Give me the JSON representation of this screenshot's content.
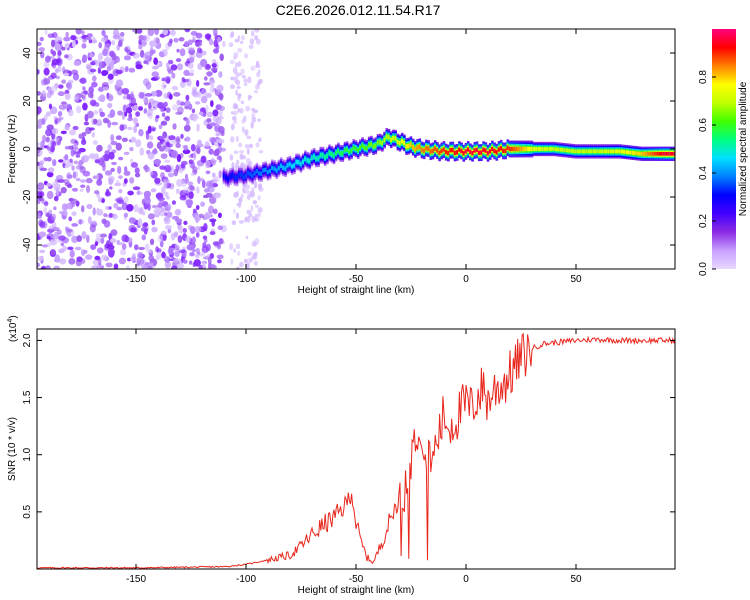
{
  "title": "C2E6.2026.012.11.54.R17",
  "chart_data": [
    {
      "type": "heatmap",
      "xlabel": "Height of straight line (km)",
      "ylabel": "Frequency (Hz)",
      "xlim": [
        -195,
        95
      ],
      "ylim": [
        -50,
        50
      ],
      "xticks": [
        -150,
        -100,
        -50,
        0,
        50
      ],
      "yticks": [
        -40,
        -20,
        0,
        20,
        40
      ],
      "colorbar": {
        "label": "Normalized spectral amplitude",
        "range": [
          0,
          1
        ],
        "ticks": [
          "0.0",
          "0.2",
          "0.4",
          "0.6",
          "0.8"
        ],
        "colors": [
          "#e8d8ff",
          "#c8a0ff",
          "#8a2be2",
          "#4400ff",
          "#0000ff",
          "#0080ff",
          "#00e0ff",
          "#00ff80",
          "#40ff00",
          "#c0ff00",
          "#ffff00",
          "#ff8000",
          "#ff0000",
          "#ff0080"
        ]
      },
      "noise_region": {
        "x_start": -195,
        "x_end": -110,
        "freq_range": [
          -50,
          50
        ],
        "amplitude": 0.15
      },
      "ridge": {
        "x": [
          -110,
          -100,
          -90,
          -80,
          -70,
          -60,
          -50,
          -40,
          -35,
          -30,
          -25,
          -20,
          -10,
          0,
          10,
          20,
          30,
          40,
          50,
          60,
          70,
          80,
          90,
          95
        ],
        "freq": [
          -12,
          -11,
          -9,
          -7,
          -4,
          -2,
          0,
          2,
          5,
          3,
          1,
          0,
          -1,
          -1,
          -1,
          0,
          0,
          0,
          -1,
          -1,
          -1,
          -2,
          -2,
          -2
        ],
        "peak_amplitude": [
          0.3,
          0.35,
          0.4,
          0.45,
          0.5,
          0.55,
          0.6,
          0.65,
          0.7,
          0.75,
          0.8,
          0.85,
          0.9,
          0.95,
          0.95,
          0.9,
          0.75,
          0.7,
          0.7,
          0.7,
          0.75,
          0.8,
          0.95,
          0.95
        ]
      }
    },
    {
      "type": "line",
      "xlabel": "Height of straight line (km)",
      "ylabel": "SNR (10 * v/v)",
      "y_multiplier": "(x10",
      "y_multiplier_exp": "4",
      "y_multiplier_close": ")",
      "xlim": [
        -195,
        95
      ],
      "ylim": [
        0,
        2.1
      ],
      "xticks": [
        -150,
        -100,
        -50,
        0,
        50
      ],
      "yticks": [
        "0.5",
        "1.0",
        "1.5",
        "2.0"
      ],
      "color": "#e8261c",
      "series": [
        {
          "name": "SNR",
          "x": [
            -195,
            -150,
            -110,
            -100,
            -90,
            -80,
            -75,
            -70,
            -65,
            -60,
            -55,
            -52,
            -50,
            -48,
            -45,
            -42,
            -40,
            -38,
            -35,
            -32,
            -30,
            -27,
            -25,
            -22,
            -20,
            -18,
            -15,
            -12,
            -10,
            -8,
            -5,
            -2,
            0,
            2,
            5,
            8,
            10,
            12,
            15,
            18,
            20,
            25,
            30,
            35,
            40,
            50,
            60,
            70,
            80,
            90,
            95
          ],
          "y": [
            0.01,
            0.01,
            0.02,
            0.04,
            0.08,
            0.12,
            0.2,
            0.3,
            0.38,
            0.45,
            0.55,
            0.68,
            0.4,
            0.25,
            0.1,
            0.06,
            0.15,
            0.25,
            0.4,
            0.55,
            0.65,
            0.75,
            1.0,
            1.25,
            1.2,
            1.1,
            1.0,
            1.2,
            1.35,
            1.25,
            1.3,
            1.4,
            1.45,
            1.4,
            1.5,
            1.6,
            1.45,
            1.55,
            1.6,
            1.65,
            1.7,
            1.85,
            1.93,
            1.97,
            1.98,
            2.0,
            2.01,
            2.0,
            2.0,
            2.0,
            2.0
          ]
        }
      ]
    }
  ]
}
